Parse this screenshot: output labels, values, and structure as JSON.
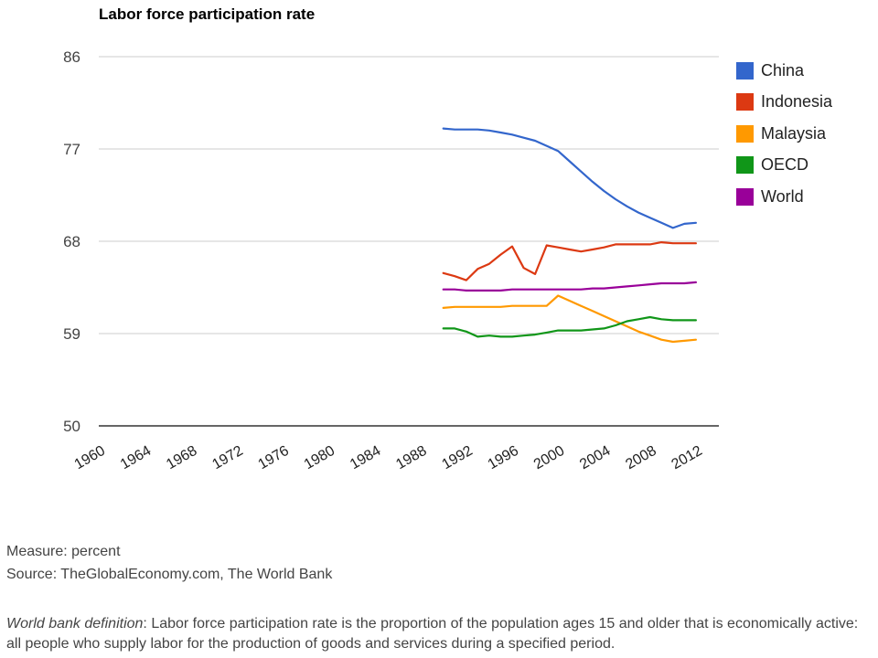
{
  "chart_data": {
    "type": "line",
    "title": "Labor force participation rate",
    "x": [
      1990,
      1991,
      1992,
      1993,
      1994,
      1995,
      1996,
      1997,
      1998,
      1999,
      2000,
      2001,
      2002,
      2003,
      2004,
      2005,
      2006,
      2007,
      2008,
      2009,
      2010,
      2011,
      2012
    ],
    "x_tick_labels": [
      "1960",
      "1964",
      "1968",
      "1972",
      "1976",
      "1980",
      "1984",
      "1988",
      "1992",
      "1996",
      "2000",
      "2004",
      "2008",
      "2012"
    ],
    "x_tick_values": [
      1960,
      1964,
      1968,
      1972,
      1976,
      1980,
      1984,
      1988,
      1992,
      1996,
      2000,
      2004,
      2008,
      2012
    ],
    "xlim": [
      1960,
      2014
    ],
    "ylim": [
      50,
      86
    ],
    "y_ticks": [
      50,
      59,
      68,
      77,
      86
    ],
    "grid": true,
    "legend_position": "right",
    "series": [
      {
        "name": "China",
        "color": "#3366cc",
        "values": [
          79.0,
          78.9,
          78.9,
          78.9,
          78.8,
          78.6,
          78.4,
          78.1,
          77.8,
          77.3,
          76.8,
          75.8,
          74.8,
          73.8,
          72.9,
          72.1,
          71.4,
          70.8,
          70.3,
          69.8,
          69.3,
          69.7,
          69.8
        ]
      },
      {
        "name": "Indonesia",
        "color": "#dc3912",
        "values": [
          64.9,
          64.6,
          64.2,
          65.3,
          65.8,
          66.7,
          67.5,
          65.4,
          64.8,
          67.6,
          67.4,
          67.2,
          67.0,
          67.2,
          67.4,
          67.7,
          67.7,
          67.7,
          67.7,
          67.9,
          67.8,
          67.8,
          67.8
        ]
      },
      {
        "name": "Malaysia",
        "color": "#ff9900",
        "values": [
          61.5,
          61.6,
          61.6,
          61.6,
          61.6,
          61.6,
          61.7,
          61.7,
          61.7,
          61.7,
          62.7,
          62.2,
          61.7,
          61.2,
          60.7,
          60.2,
          59.7,
          59.2,
          58.8,
          58.4,
          58.2,
          58.3,
          58.4
        ]
      },
      {
        "name": "OECD",
        "color": "#109618",
        "values": [
          59.5,
          59.5,
          59.2,
          58.7,
          58.8,
          58.7,
          58.7,
          58.8,
          58.9,
          59.1,
          59.3,
          59.3,
          59.3,
          59.4,
          59.5,
          59.8,
          60.2,
          60.4,
          60.6,
          60.4,
          60.3,
          60.3,
          60.3
        ]
      },
      {
        "name": "World",
        "color": "#990099",
        "values": [
          63.3,
          63.3,
          63.2,
          63.2,
          63.2,
          63.2,
          63.3,
          63.3,
          63.3,
          63.3,
          63.3,
          63.3,
          63.3,
          63.4,
          63.4,
          63.5,
          63.6,
          63.7,
          63.8,
          63.9,
          63.9,
          63.9,
          64.0
        ]
      }
    ]
  },
  "footer": {
    "measure": "Measure: percent",
    "source": "Source: TheGlobalEconomy.com, The World Bank",
    "definition_label": "World bank definition",
    "definition_text": ": Labor force participation rate is the proportion of the population ages 15 and older that is economically active: all people who supply labor for the production of goods and services during a specified period."
  }
}
